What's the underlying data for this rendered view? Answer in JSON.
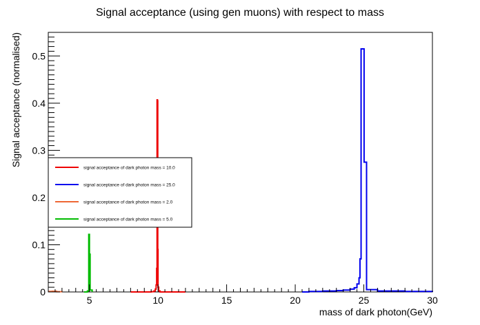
{
  "chart_data": {
    "type": "line",
    "title": "Signal acceptance (using gen muons) with respect to mass",
    "xlabel": "mass of dark photon(GeV)",
    "ylabel": "Signal acceptance (normalised)",
    "xlim": [
      2,
      30
    ],
    "ylim": [
      0,
      0.55
    ],
    "x_ticks": [
      5,
      10,
      15,
      20,
      25,
      30
    ],
    "y_ticks": [
      0,
      0.1,
      0.2,
      0.3,
      0.4,
      0.5
    ],
    "grid": false,
    "legend_position": "left",
    "legend_order": [
      "mass10",
      "mass25",
      "mass2",
      "mass5"
    ],
    "series": [
      {
        "id": "mass10",
        "name": "signal acceptance of dark photon mass = 10.0",
        "color": "#ee0000",
        "points": [
          [
            8.0,
            0.0
          ],
          [
            9.5,
            0.0005
          ],
          [
            9.7,
            0.002
          ],
          [
            9.8,
            0.006
          ],
          [
            9.86,
            0.015
          ],
          [
            9.9,
            0.05
          ],
          [
            9.93,
            0.407
          ],
          [
            9.96,
            0.405
          ],
          [
            9.98,
            0.09
          ],
          [
            10.0,
            0.01
          ],
          [
            10.05,
            0.002
          ],
          [
            10.15,
            0.0
          ],
          [
            12.0,
            0.0
          ]
        ]
      },
      {
        "id": "mass25",
        "name": "signal acceptance of dark photon mass = 25.0",
        "color": "#0000ee",
        "points": [
          [
            20.5,
            0.0
          ],
          [
            21.0,
            0.001
          ],
          [
            22.0,
            0.002
          ],
          [
            23.0,
            0.003
          ],
          [
            23.5,
            0.004
          ],
          [
            24.0,
            0.006
          ],
          [
            24.3,
            0.009
          ],
          [
            24.5,
            0.017
          ],
          [
            24.65,
            0.03
          ],
          [
            24.72,
            0.07
          ],
          [
            24.8,
            0.515
          ],
          [
            25.0,
            0.515
          ],
          [
            25.02,
            0.275
          ],
          [
            25.2,
            0.005
          ],
          [
            26.0,
            0.002
          ],
          [
            28.0,
            0.001
          ],
          [
            30.0,
            0.0
          ]
        ]
      },
      {
        "id": "mass2",
        "name": "signal acceptance of dark photon mass = 2.0",
        "color": "#ee6633",
        "points": [
          [
            2.0,
            0.001
          ],
          [
            2.3,
            0.0015
          ],
          [
            2.6,
            0.0005
          ],
          [
            3.0,
            0.0
          ]
        ]
      },
      {
        "id": "mass5",
        "name": "signal acceptance of dark photon mass = 5.0",
        "color": "#00bb00",
        "points": [
          [
            4.6,
            0.0
          ],
          [
            4.85,
            0.002
          ],
          [
            4.95,
            0.122
          ],
          [
            5.0,
            0.08
          ],
          [
            5.05,
            0.004
          ],
          [
            5.2,
            0.0
          ]
        ]
      }
    ]
  }
}
